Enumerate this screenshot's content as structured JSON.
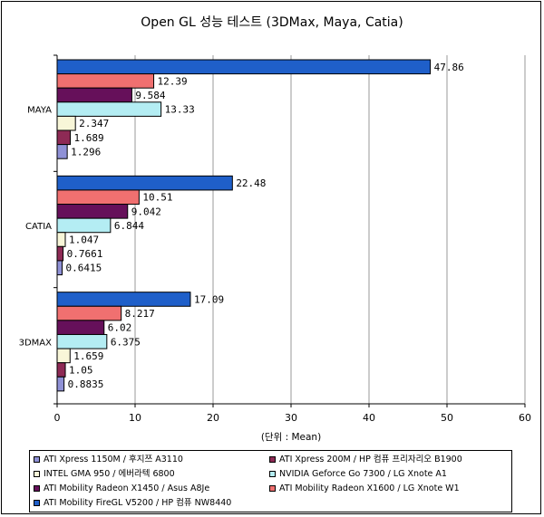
{
  "chart_data": {
    "type": "bar",
    "orientation": "horizontal",
    "title": "Open GL 성능 테스트 (3DMax, Maya, Catia)",
    "xlabel": "(단위 : Mean)",
    "ylabel": "",
    "xlim": [
      0,
      60
    ],
    "xticks": [
      "0",
      "10",
      "20",
      "30",
      "40",
      "50",
      "60"
    ],
    "categories": [
      "MAYA",
      "CATIA",
      "3DMAX"
    ],
    "grid": "vertical",
    "legend_position": "bottom",
    "series": [
      {
        "name": "ATI Xpress 1150M / 후지쯔 A3110",
        "color": "#8f91d6",
        "values": [
          1.296,
          0.6415,
          0.8835
        ],
        "labels": [
          "1.296",
          "0.6415",
          "0.8835"
        ]
      },
      {
        "name": "ATI Xpress 200M / HP 컴퓨 프리자리오 B1900",
        "color": "#8e2a55",
        "values": [
          1.689,
          0.7661,
          1.05
        ],
        "labels": [
          "1.689",
          "0.7661",
          "1.05"
        ]
      },
      {
        "name": "INTEL GMA 950 / 에버라텍 6800",
        "color": "#f8f6d8",
        "values": [
          2.347,
          1.047,
          1.659
        ],
        "labels": [
          "2.347",
          "1.047",
          "1.659"
        ]
      },
      {
        "name": "NVIDIA Geforce Go 7300 / LG Xnote A1",
        "color": "#b4edf3",
        "values": [
          13.33,
          6.844,
          6.375
        ],
        "labels": [
          "13.33",
          "6.844",
          "6.375"
        ]
      },
      {
        "name": "ATI Mobility Radeon X1450 / Asus A8Je",
        "color": "#66105a",
        "values": [
          9.584,
          9.042,
          6.02
        ],
        "labels": [
          "9.584",
          "9.042",
          "6.02"
        ]
      },
      {
        "name": "ATI Mobility Radeon X1600 / LG Xnote W1",
        "color": "#f07070",
        "values": [
          12.39,
          10.51,
          8.217
        ],
        "labels": [
          "12.39",
          "10.51",
          "8.217"
        ]
      },
      {
        "name": "ATI Mobility FireGL V5200 / HP 컴퓨 NW8440",
        "color": "#1f5fc9",
        "values": [
          47.86,
          22.48,
          17.09
        ],
        "labels": [
          "47.86",
          "22.48",
          "17.09"
        ]
      }
    ]
  }
}
